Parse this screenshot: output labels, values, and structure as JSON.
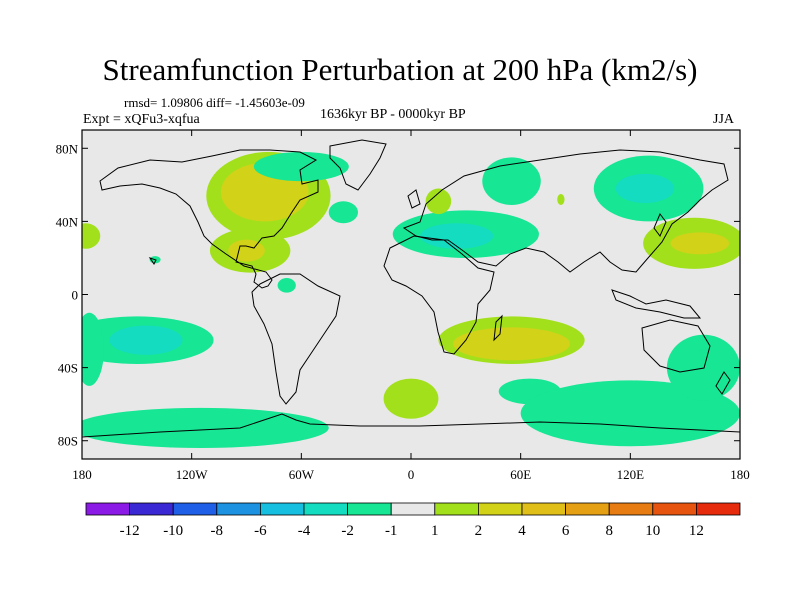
{
  "header": {
    "title": "Streamfunction Perturbation at 200 hPa (km2/s)",
    "stats": "rmsd= 1.09806 diff= -1.45603e-09",
    "subtitle": "1636kyr BP - 0000kyr BP",
    "experiment": "Expt = xQFu3-xqfua",
    "season": "JJA"
  },
  "map": {
    "projection": "cylindrical-equidistant",
    "lon_range": [
      -180,
      180
    ],
    "lat_range": [
      -90,
      90
    ],
    "x_ticks": [
      {
        "lon": -180,
        "label": "180"
      },
      {
        "lon": -120,
        "label": "120W"
      },
      {
        "lon": -60,
        "label": "60W"
      },
      {
        "lon": 0,
        "label": "0"
      },
      {
        "lon": 60,
        "label": "60E"
      },
      {
        "lon": 120,
        "label": "120E"
      },
      {
        "lon": 180,
        "label": "180"
      }
    ],
    "y_ticks": [
      {
        "lat": 80,
        "label": "80N"
      },
      {
        "lat": 40,
        "label": "40N"
      },
      {
        "lat": 0,
        "label": "0"
      },
      {
        "lat": -40,
        "label": "40S"
      },
      {
        "lat": -80,
        "label": "80S"
      }
    ],
    "background_color": "#e8e8e8"
  },
  "colorbar": {
    "bins": [
      {
        "color": "#8c1ae6"
      },
      {
        "color": "#3a28d4"
      },
      {
        "color": "#1f5ee6"
      },
      {
        "color": "#1c92e0"
      },
      {
        "color": "#16bfe0"
      },
      {
        "color": "#14dcc0"
      },
      {
        "color": "#17e694"
      },
      {
        "color": "#e8e8e8"
      },
      {
        "color": "#a3e01c"
      },
      {
        "color": "#d2d218"
      },
      {
        "color": "#e0bf18"
      },
      {
        "color": "#e6a014"
      },
      {
        "color": "#e67c12"
      },
      {
        "color": "#e6540f"
      },
      {
        "color": "#e62a0c"
      }
    ],
    "labels": [
      "-12",
      "-10",
      "-8",
      "-6",
      "-4",
      "-2",
      "-1",
      "1",
      "2",
      "4",
      "6",
      "8",
      "10",
      "12"
    ]
  },
  "field_blobs": [
    {
      "level": "2",
      "color": "#a3e01c",
      "lon": -78,
      "lat": 54,
      "rlon": 34,
      "rlat": 24
    },
    {
      "level": "4",
      "color": "#d2d218",
      "lon": -80,
      "lat": 56,
      "rlon": 24,
      "rlat": 16
    },
    {
      "level": "2",
      "color": "#a3e01c",
      "lon": -88,
      "lat": 24,
      "rlon": 22,
      "rlat": 12
    },
    {
      "level": "4",
      "color": "#d2d218",
      "lon": -90,
      "lat": 24,
      "rlon": 10,
      "rlat": 6
    },
    {
      "level": "-1",
      "color": "#17e694",
      "lon": -60,
      "lat": 70,
      "rlon": 26,
      "rlat": 8
    },
    {
      "level": "-1",
      "color": "#17e694",
      "lon": -37,
      "lat": 45,
      "rlon": 8,
      "rlat": 6
    },
    {
      "level": "2",
      "color": "#a3e01c",
      "lon": -178,
      "lat": 32,
      "rlon": 8,
      "rlat": 7
    },
    {
      "level": "-1",
      "color": "#17e694",
      "lon": -68,
      "lat": 5,
      "rlon": 5,
      "rlat": 4
    },
    {
      "level": "-1",
      "color": "#17e694",
      "lon": -140,
      "lat": 19,
      "rlon": 3,
      "rlat": 2
    },
    {
      "level": "-1",
      "color": "#17e694",
      "lon": 30,
      "lat": 33,
      "rlon": 40,
      "rlat": 13
    },
    {
      "level": "-2",
      "color": "#14dcc0",
      "lon": 25,
      "lat": 32,
      "rlon": 20,
      "rlat": 7
    },
    {
      "level": "-1",
      "color": "#17e694",
      "lon": 55,
      "lat": 62,
      "rlon": 16,
      "rlat": 13
    },
    {
      "level": "2",
      "color": "#a3e01c",
      "lon": 15,
      "lat": 51,
      "rlon": 7,
      "rlat": 7
    },
    {
      "level": "2",
      "color": "#a3e01c",
      "lon": 82,
      "lat": 52,
      "rlon": 2,
      "rlat": 3
    },
    {
      "level": "-1",
      "color": "#17e694",
      "lon": 130,
      "lat": 58,
      "rlon": 30,
      "rlat": 18
    },
    {
      "level": "-2",
      "color": "#14dcc0",
      "lon": 128,
      "lat": 58,
      "rlon": 16,
      "rlat": 8
    },
    {
      "level": "2",
      "color": "#a3e01c",
      "lon": 155,
      "lat": 28,
      "rlon": 28,
      "rlat": 14
    },
    {
      "level": "4",
      "color": "#d2d218",
      "lon": 158,
      "lat": 28,
      "rlon": 16,
      "rlat": 6
    },
    {
      "level": "-1",
      "color": "#17e694",
      "lon": -150,
      "lat": -25,
      "rlon": 42,
      "rlat": 13
    },
    {
      "level": "-2",
      "color": "#14dcc0",
      "lon": -145,
      "lat": -25,
      "rlon": 20,
      "rlat": 8
    },
    {
      "level": "-1",
      "color": "#17e694",
      "lon": -176,
      "lat": -30,
      "rlon": 8,
      "rlat": 20
    },
    {
      "level": "-1",
      "color": "#17e694",
      "lon": -115,
      "lat": -73,
      "rlon": 70,
      "rlat": 11
    },
    {
      "level": "2",
      "color": "#a3e01c",
      "lon": 55,
      "lat": -25,
      "rlon": 40,
      "rlat": 13
    },
    {
      "level": "4",
      "color": "#d2d218",
      "lon": 55,
      "lat": -27,
      "rlon": 32,
      "rlat": 9
    },
    {
      "level": "2",
      "color": "#a3e01c",
      "lon": 0,
      "lat": -57,
      "rlon": 15,
      "rlat": 11
    },
    {
      "level": "-1",
      "color": "#17e694",
      "lon": 65,
      "lat": -53,
      "rlon": 17,
      "rlat": 7
    },
    {
      "level": "-1",
      "color": "#17e694",
      "lon": 120,
      "lat": -65,
      "rlon": 60,
      "rlat": 18
    },
    {
      "level": "-1",
      "color": "#17e694",
      "lon": 160,
      "lat": -40,
      "rlon": 20,
      "rlat": 18
    },
    {
      "level": "-1",
      "color": "#17e694",
      "lon": 160,
      "lat": -33,
      "rlon": 3,
      "rlat": 3
    }
  ]
}
